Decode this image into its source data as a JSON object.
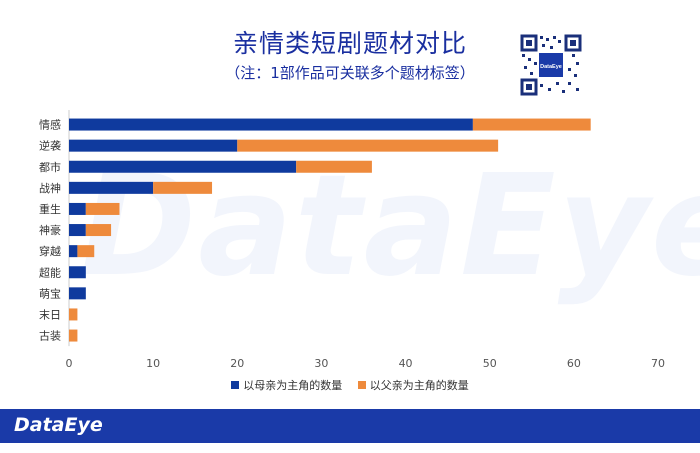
{
  "header": {
    "title": "亲情类短剧题材对比",
    "subtitle": "（注：1部作品可关联多个题材标签）"
  },
  "qr": {
    "badge_text": "DataEye"
  },
  "watermark": "DataEye",
  "footer": {
    "logo": "DataEye"
  },
  "colors": {
    "mother": "#0f3a9e",
    "father": "#ee8a3c",
    "title": "#1a2fa0",
    "footer": "#1a3aa8"
  },
  "chart_data": {
    "type": "bar",
    "orientation": "horizontal",
    "stacked": true,
    "categories": [
      "情感",
      "逆袭",
      "都市",
      "战神",
      "重生",
      "神豪",
      "穿越",
      "超能",
      "萌宝",
      "末日",
      "古装"
    ],
    "series": [
      {
        "name": "以母亲为主角的数量",
        "values": [
          48,
          20,
          27,
          10,
          2,
          2,
          1,
          2,
          2,
          0,
          0
        ]
      },
      {
        "name": "以父亲为主角的数量",
        "values": [
          14,
          31,
          9,
          7,
          4,
          3,
          2,
          0,
          0,
          1,
          1
        ]
      }
    ],
    "xlim": [
      0,
      70
    ],
    "xticks": [
      "0",
      "10",
      "20",
      "30",
      "40",
      "50",
      "60",
      "70"
    ],
    "legend_position": "bottom",
    "grid": false
  }
}
